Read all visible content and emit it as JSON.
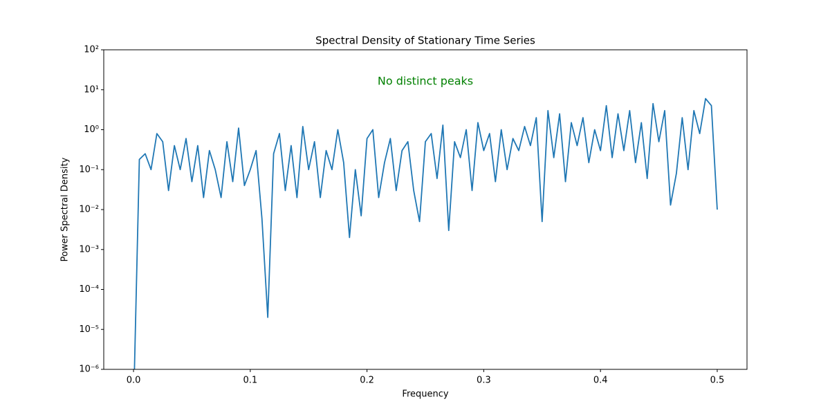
{
  "chart_data": {
    "type": "line",
    "title": "Spectral Density of Stationary Time Series",
    "xlabel": "Frequency",
    "ylabel": "Power Spectral Density",
    "annotation": "No distinct peaks",
    "annotation_color": "green",
    "color": "#1f77b4",
    "yscale": "log",
    "grid": false,
    "x": [
      0,
      0.005,
      0.01,
      0.015,
      0.02,
      0.025,
      0.03,
      0.035,
      0.04,
      0.045,
      0.05,
      0.055,
      0.06,
      0.065,
      0.07,
      0.075,
      0.08,
      0.085,
      0.09,
      0.095,
      0.1,
      0.105,
      0.11,
      0.115,
      0.12,
      0.125,
      0.13,
      0.135,
      0.14,
      0.145,
      0.15,
      0.155,
      0.16,
      0.165,
      0.17,
      0.175,
      0.18,
      0.185,
      0.19,
      0.195,
      0.2,
      0.205,
      0.21,
      0.215,
      0.22,
      0.225,
      0.23,
      0.235,
      0.24,
      0.245,
      0.25,
      0.255,
      0.26,
      0.265,
      0.27,
      0.275,
      0.28,
      0.285,
      0.29,
      0.295,
      0.3,
      0.305,
      0.31,
      0.315,
      0.32,
      0.325,
      0.33,
      0.335,
      0.34,
      0.345,
      0.35,
      0.355,
      0.36,
      0.365,
      0.37,
      0.375,
      0.38,
      0.385,
      0.39,
      0.395,
      0.4,
      0.405,
      0.41,
      0.415,
      0.42,
      0.425,
      0.43,
      0.435,
      0.44,
      0.445,
      0.45,
      0.455,
      0.46,
      0.465,
      0.47,
      0.475,
      0.48,
      0.485,
      0.49,
      0.495,
      0.5
    ],
    "values": [
      1e-07,
      0.18,
      0.25,
      0.1,
      0.8,
      0.5,
      0.03,
      0.4,
      0.1,
      0.6,
      0.05,
      0.4,
      0.02,
      0.3,
      0.1,
      0.02,
      0.5,
      0.05,
      1.1,
      0.04,
      0.1,
      0.3,
      0.006,
      2e-05,
      0.25,
      0.8,
      0.03,
      0.4,
      0.02,
      1.2,
      0.1,
      0.5,
      0.02,
      0.3,
      0.1,
      1.0,
      0.15,
      0.002,
      0.1,
      0.007,
      0.6,
      1.0,
      0.02,
      0.15,
      0.6,
      0.03,
      0.3,
      0.5,
      0.03,
      0.005,
      0.5,
      0.8,
      0.06,
      1.3,
      0.003,
      0.5,
      0.2,
      1.0,
      0.03,
      1.5,
      0.3,
      0.8,
      0.05,
      1.0,
      0.1,
      0.6,
      0.3,
      1.2,
      0.4,
      2.0,
      0.005,
      3.0,
      0.2,
      2.5,
      0.05,
      1.5,
      0.4,
      2.0,
      0.15,
      1.0,
      0.3,
      4.0,
      0.2,
      2.5,
      0.3,
      3.0,
      0.15,
      1.5,
      0.06,
      4.5,
      0.5,
      3.0,
      0.013,
      0.08,
      2.0,
      0.1,
      3.0,
      0.8,
      6.0,
      4.0,
      0.01
    ],
    "xlim": [
      -0.0255,
      0.5255
    ],
    "xticks": [
      {
        "value": 0,
        "label": "0.0"
      },
      0.1,
      0.2,
      0.3,
      0.4,
      0.5
    ],
    "ylim": [
      1e-06,
      100
    ],
    "yticks": [
      {
        "value": 1e-06,
        "label": "10⁻⁶"
      },
      {
        "value": 1e-05,
        "label": "10⁻⁵"
      },
      {
        "value": 0.0001,
        "label": "10⁻⁴"
      },
      {
        "value": 0.001,
        "label": "10⁻³"
      },
      {
        "value": 0.01,
        "label": "10⁻²"
      },
      {
        "value": 0.1,
        "label": "10⁻¹"
      },
      {
        "value": 1,
        "label": "10⁰"
      },
      {
        "value": 10,
        "label": "10¹"
      },
      {
        "value": 100,
        "label": "10²"
      }
    ]
  }
}
